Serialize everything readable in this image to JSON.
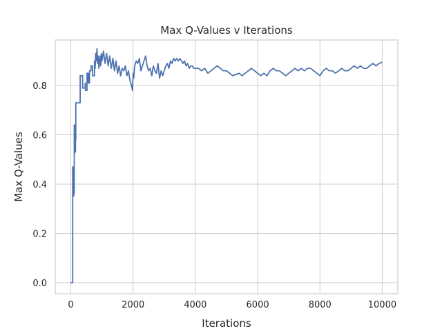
{
  "chart_data": {
    "type": "line",
    "title": "Max Q-Values v Iterations",
    "xlabel": "Iterations",
    "ylabel": "Max Q-Values",
    "xlim": [
      -500,
      10500
    ],
    "ylim": [
      -0.045,
      0.985
    ],
    "xticks": [
      0,
      2000,
      4000,
      6000,
      8000,
      10000
    ],
    "xtick_labels": [
      "0",
      "2000",
      "4000",
      "6000",
      "8000",
      "10000"
    ],
    "yticks": [
      0.0,
      0.2,
      0.4,
      0.6,
      0.8
    ],
    "ytick_labels": [
      "0.0",
      "0.2",
      "0.4",
      "0.6",
      "0.8"
    ],
    "grid": true,
    "color": "#4c72b0",
    "series": [
      {
        "x": [
          0,
          60,
          60,
          80,
          80,
          90,
          90,
          100,
          100,
          110,
          110,
          130,
          130,
          150,
          150,
          160,
          160,
          180,
          180,
          200,
          200,
          300,
          300,
          380,
          380,
          460,
          460,
          470,
          470,
          520,
          520,
          560,
          560,
          600,
          600,
          650,
          650,
          700,
          700,
          760,
          760,
          780,
          800,
          820,
          840,
          860,
          880,
          900,
          920,
          940,
          960,
          980,
          1000,
          1050,
          1100,
          1150,
          1200,
          1250,
          1300,
          1350,
          1400,
          1450,
          1500,
          1550,
          1600,
          1650,
          1700,
          1750,
          1800,
          1850,
          1900,
          1950,
          1980,
          2000,
          2020,
          2050,
          2100,
          2150,
          2200,
          2250,
          2300,
          2350,
          2400,
          2450,
          2500,
          2550,
          2600,
          2650,
          2700,
          2750,
          2800,
          2850,
          2900,
          2950,
          3000,
          3050,
          3100,
          3150,
          3200,
          3250,
          3300,
          3350,
          3400,
          3450,
          3500,
          3550,
          3600,
          3650,
          3700,
          3750,
          3800,
          3850,
          3900,
          3950,
          4000,
          4100,
          4200,
          4300,
          4400,
          4500,
          4600,
          4700,
          4800,
          4900,
          5000,
          5100,
          5200,
          5300,
          5400,
          5500,
          5600,
          5700,
          5800,
          5900,
          6000,
          6100,
          6200,
          6300,
          6400,
          6500,
          6600,
          6700,
          6800,
          6900,
          7000,
          7100,
          7200,
          7300,
          7400,
          7500,
          7600,
          7700,
          7800,
          7900,
          8000,
          8100,
          8200,
          8300,
          8400,
          8500,
          8600,
          8700,
          8800,
          8900,
          9000,
          9100,
          9200,
          9300,
          9400,
          9500,
          9600,
          9700,
          9800,
          9900,
          10000
        ],
        "y": [
          0.0,
          0.0,
          0.47,
          0.47,
          0.35,
          0.35,
          0.42,
          0.42,
          0.36,
          0.36,
          0.64,
          0.64,
          0.53,
          0.53,
          0.58,
          0.58,
          0.73,
          0.73,
          0.73,
          0.73,
          0.73,
          0.73,
          0.84,
          0.84,
          0.79,
          0.79,
          0.81,
          0.81,
          0.78,
          0.78,
          0.85,
          0.85,
          0.81,
          0.81,
          0.86,
          0.86,
          0.88,
          0.88,
          0.84,
          0.84,
          0.9,
          0.87,
          0.93,
          0.9,
          0.95,
          0.89,
          0.92,
          0.87,
          0.9,
          0.92,
          0.88,
          0.93,
          0.9,
          0.94,
          0.89,
          0.93,
          0.88,
          0.92,
          0.87,
          0.91,
          0.86,
          0.9,
          0.85,
          0.88,
          0.84,
          0.87,
          0.86,
          0.88,
          0.84,
          0.86,
          0.82,
          0.8,
          0.78,
          0.85,
          0.83,
          0.88,
          0.9,
          0.89,
          0.91,
          0.86,
          0.88,
          0.9,
          0.92,
          0.88,
          0.86,
          0.87,
          0.84,
          0.88,
          0.86,
          0.85,
          0.89,
          0.83,
          0.86,
          0.84,
          0.86,
          0.88,
          0.89,
          0.87,
          0.9,
          0.89,
          0.91,
          0.9,
          0.91,
          0.9,
          0.91,
          0.9,
          0.89,
          0.9,
          0.88,
          0.89,
          0.87,
          0.88,
          0.88,
          0.87,
          0.87,
          0.87,
          0.86,
          0.87,
          0.85,
          0.86,
          0.87,
          0.88,
          0.87,
          0.86,
          0.86,
          0.85,
          0.84,
          0.845,
          0.85,
          0.84,
          0.85,
          0.86,
          0.87,
          0.86,
          0.85,
          0.84,
          0.85,
          0.84,
          0.86,
          0.87,
          0.86,
          0.86,
          0.85,
          0.84,
          0.85,
          0.86,
          0.87,
          0.86,
          0.87,
          0.86,
          0.87,
          0.87,
          0.86,
          0.85,
          0.84,
          0.86,
          0.87,
          0.86,
          0.86,
          0.85,
          0.86,
          0.87,
          0.86,
          0.86,
          0.87,
          0.88,
          0.87,
          0.88,
          0.87,
          0.87,
          0.88,
          0.89,
          0.88,
          0.89,
          0.895
        ]
      }
    ]
  }
}
